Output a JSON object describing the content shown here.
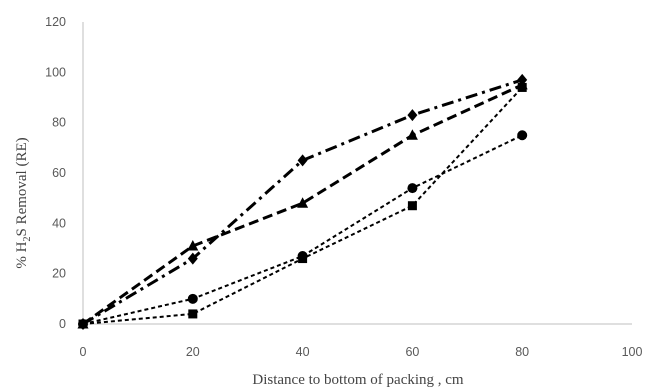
{
  "chart_data": {
    "type": "line",
    "title": "",
    "xlabel": "Distance to bottom of packing , cm",
    "ylabel_prefix": "% H",
    "ylabel_sub": "2",
    "ylabel_suffix": "S Removal (RE)",
    "xlim": [
      0,
      100
    ],
    "ylim": [
      0,
      120
    ],
    "xticks": [
      0,
      20,
      40,
      60,
      80,
      100
    ],
    "yticks": [
      0,
      20,
      40,
      60,
      80,
      100,
      120
    ],
    "grid": false,
    "legend": "none",
    "color": "#000000",
    "x": [
      0,
      20,
      40,
      60,
      80
    ],
    "series": [
      {
        "marker": "diamond",
        "dash": "long-dash-dot",
        "values": [
          0,
          26,
          65,
          83,
          97
        ]
      },
      {
        "marker": "triangle",
        "dash": "long-dash",
        "values": [
          0,
          31,
          48,
          75,
          95
        ]
      },
      {
        "marker": "square",
        "dash": "short-dash",
        "values": [
          0,
          4,
          26,
          47,
          94
        ]
      },
      {
        "marker": "circle",
        "dash": "short-dash",
        "values": [
          0,
          10,
          27,
          54,
          75
        ]
      }
    ]
  }
}
